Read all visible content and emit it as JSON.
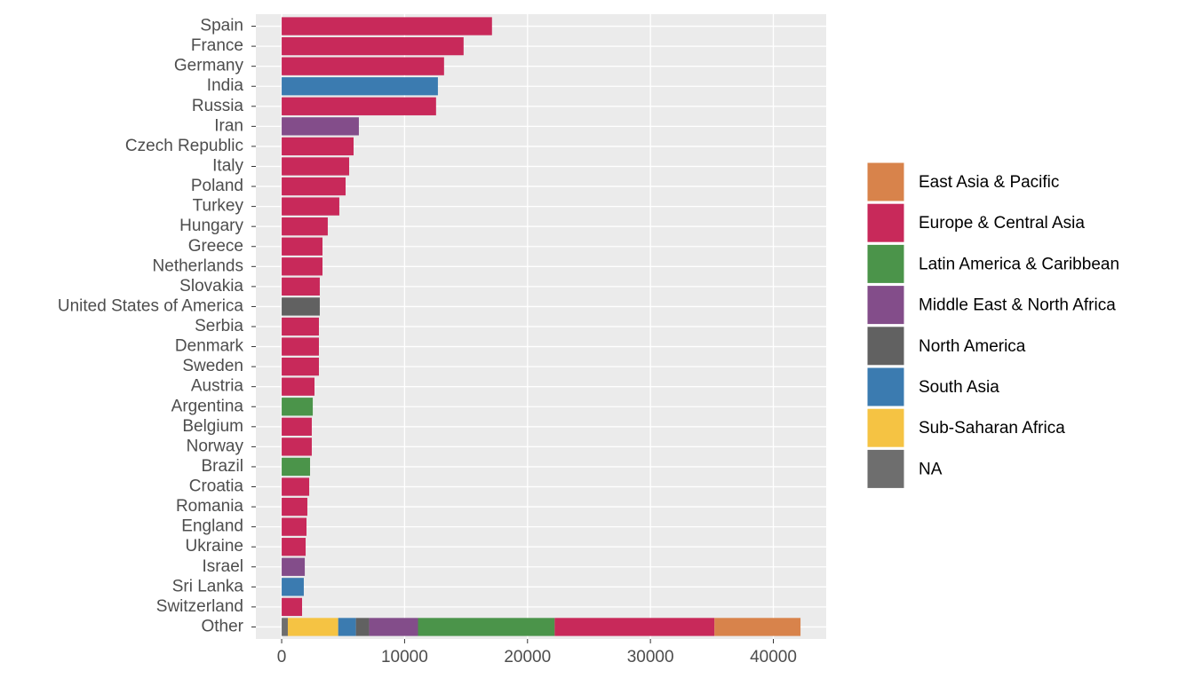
{
  "chart_data": {
    "type": "stacked-bar-horizontal",
    "categories": [
      "Spain",
      "France",
      "Germany",
      "India",
      "Russia",
      "Iran",
      "Czech Republic",
      "Italy",
      "Poland",
      "Turkey",
      "Hungary",
      "Greece",
      "Netherlands",
      "Slovakia",
      "United States of America",
      "Serbia",
      "Denmark",
      "Sweden",
      "Austria",
      "Argentina",
      "Belgium",
      "Norway",
      "Brazil",
      "Croatia",
      "Romania",
      "England",
      "Ukraine",
      "Israel",
      "Sri Lanka",
      "Switzerland",
      "Other"
    ],
    "series": [
      {
        "name": "East Asia & Pacific",
        "color": "#d8834b",
        "values": [
          null,
          null,
          null,
          null,
          null,
          null,
          null,
          null,
          null,
          null,
          null,
          null,
          null,
          null,
          null,
          null,
          null,
          null,
          null,
          null,
          null,
          null,
          null,
          null,
          null,
          null,
          null,
          null,
          null,
          null,
          7000
        ]
      },
      {
        "name": "Europe & Central Asia",
        "color": "#c8295a",
        "values": [
          17110,
          14800,
          13210,
          null,
          12560,
          null,
          5850,
          5490,
          5200,
          4690,
          3750,
          3320,
          3320,
          3100,
          null,
          3030,
          3030,
          3030,
          2670,
          null,
          2450,
          2450,
          null,
          2240,
          2090,
          2020,
          1950,
          null,
          null,
          1660,
          13000
        ]
      },
      {
        "name": "Latin America & Caribbean",
        "color": "#4b944a",
        "values": [
          null,
          null,
          null,
          null,
          null,
          null,
          null,
          null,
          null,
          null,
          null,
          null,
          null,
          null,
          null,
          null,
          null,
          null,
          null,
          2530,
          null,
          null,
          2310,
          null,
          null,
          null,
          null,
          null,
          null,
          null,
          11120
        ]
      },
      {
        "name": "Middle East & North Africa",
        "color": "#834d8a",
        "values": [
          null,
          null,
          null,
          null,
          null,
          6280,
          null,
          null,
          null,
          null,
          null,
          null,
          null,
          null,
          null,
          null,
          null,
          null,
          null,
          null,
          null,
          null,
          null,
          null,
          null,
          null,
          null,
          1880,
          null,
          null,
          3970
        ]
      },
      {
        "name": "North America",
        "color": "#616161",
        "values": [
          null,
          null,
          null,
          null,
          null,
          null,
          null,
          null,
          null,
          null,
          null,
          null,
          null,
          null,
          3100,
          null,
          null,
          null,
          null,
          null,
          null,
          null,
          null,
          null,
          null,
          null,
          null,
          null,
          null,
          null,
          1080
        ]
      },
      {
        "name": "South Asia",
        "color": "#3b7bb0",
        "values": [
          null,
          null,
          null,
          12710,
          null,
          null,
          null,
          null,
          null,
          null,
          null,
          null,
          null,
          null,
          null,
          null,
          null,
          null,
          null,
          null,
          null,
          null,
          null,
          null,
          null,
          null,
          null,
          null,
          1800,
          null,
          1440
        ]
      },
      {
        "name": "Sub-Saharan Africa",
        "color": "#f5c343",
        "values": [
          null,
          null,
          null,
          null,
          null,
          null,
          null,
          null,
          null,
          null,
          null,
          null,
          null,
          null,
          null,
          null,
          null,
          null,
          null,
          null,
          null,
          null,
          null,
          null,
          null,
          null,
          null,
          null,
          null,
          null,
          4100
        ]
      },
      {
        "name": "NA",
        "color": "#6e6e6e",
        "values": [
          null,
          null,
          null,
          null,
          null,
          null,
          null,
          null,
          null,
          null,
          null,
          null,
          null,
          null,
          null,
          null,
          null,
          null,
          null,
          null,
          null,
          null,
          null,
          null,
          null,
          null,
          null,
          null,
          null,
          null,
          500
        ]
      }
    ],
    "xlim": [
      -2100,
      44300
    ],
    "xticks": [
      0,
      10000,
      20000,
      30000,
      40000
    ],
    "grid": true,
    "legend": "right"
  }
}
